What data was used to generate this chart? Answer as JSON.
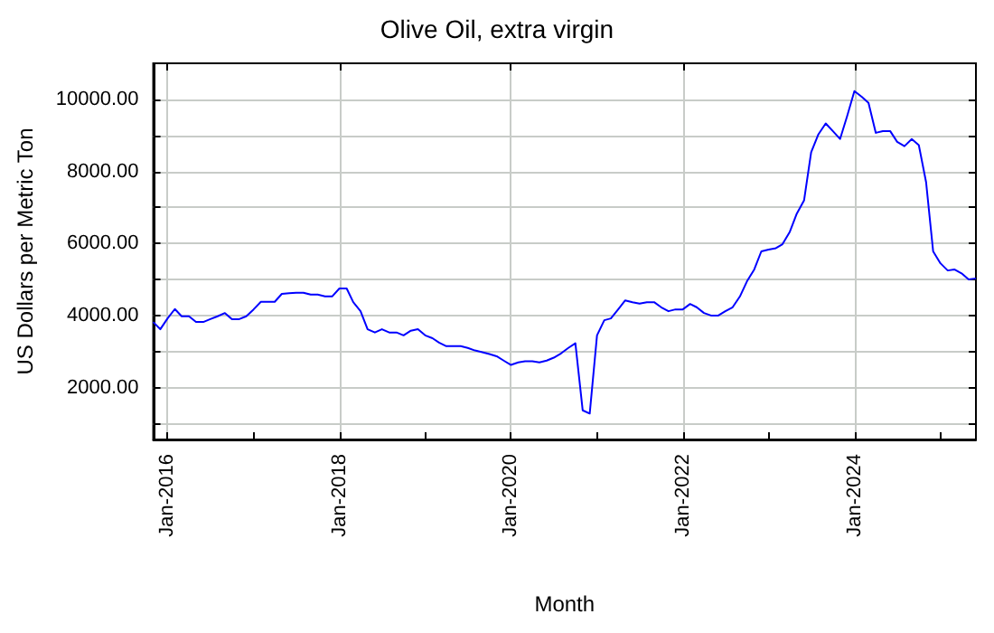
{
  "chart_data": {
    "type": "line",
    "title": "Olive Oil, extra virgin",
    "xlabel": "Month",
    "ylabel": "US Dollars per Metric Ton",
    "x": [
      "2015-11",
      "2015-12",
      "2016-01",
      "2016-02",
      "2016-03",
      "2016-04",
      "2016-05",
      "2016-06",
      "2016-07",
      "2016-08",
      "2016-09",
      "2016-10",
      "2016-11",
      "2016-12",
      "2017-01",
      "2017-02",
      "2017-03",
      "2017-04",
      "2017-05",
      "2017-06",
      "2017-07",
      "2017-08",
      "2017-09",
      "2017-10",
      "2017-11",
      "2017-12",
      "2018-01",
      "2018-02",
      "2018-03",
      "2018-04",
      "2018-05",
      "2018-06",
      "2018-07",
      "2018-08",
      "2018-09",
      "2018-10",
      "2018-11",
      "2018-12",
      "2019-01",
      "2019-02",
      "2019-03",
      "2019-04",
      "2019-05",
      "2019-06",
      "2019-07",
      "2019-08",
      "2019-09",
      "2019-10",
      "2019-11",
      "2019-12",
      "2020-01",
      "2020-02",
      "2020-03",
      "2020-04",
      "2020-05",
      "2020-06",
      "2020-07",
      "2020-08",
      "2020-09",
      "2020-10",
      "2020-11",
      "2020-12",
      "2021-01",
      "2021-02",
      "2021-03",
      "2021-04",
      "2021-05",
      "2021-06",
      "2021-07",
      "2021-08",
      "2021-09",
      "2021-10",
      "2021-11",
      "2021-12",
      "2022-01",
      "2022-02",
      "2022-03",
      "2022-04",
      "2022-05",
      "2022-06",
      "2022-07",
      "2022-08",
      "2022-09",
      "2022-10",
      "2022-11",
      "2022-12",
      "2023-01",
      "2023-02",
      "2023-03",
      "2023-04",
      "2023-05",
      "2023-06",
      "2023-07",
      "2023-08",
      "2023-09",
      "2023-10",
      "2023-11",
      "2023-12",
      "2024-01",
      "2024-02",
      "2024-03",
      "2024-04",
      "2024-05",
      "2024-06",
      "2024-07",
      "2024-08",
      "2024-09",
      "2024-10",
      "2024-11",
      "2024-12",
      "2025-01",
      "2025-02",
      "2025-03",
      "2025-04",
      "2025-05",
      "2025-06"
    ],
    "series": [
      {
        "color": "#0000ff",
        "values": [
          3820,
          3620,
          3920,
          4180,
          3980,
          3980,
          3820,
          3820,
          3900,
          3980,
          4070,
          3900,
          3900,
          3980,
          4170,
          4380,
          4380,
          4380,
          4600,
          4620,
          4630,
          4630,
          4580,
          4580,
          4530,
          4530,
          4750,
          4750,
          4370,
          4120,
          3620,
          3530,
          3620,
          3530,
          3530,
          3450,
          3580,
          3620,
          3450,
          3370,
          3250,
          3150,
          3150,
          3150,
          3100,
          3030,
          2980,
          2930,
          2870,
          2750,
          2630,
          2700,
          2730,
          2730,
          2700,
          2750,
          2830,
          2950,
          3100,
          3230,
          1370,
          1280,
          3450,
          3870,
          3920,
          4170,
          4420,
          4370,
          4330,
          4370,
          4370,
          4230,
          4120,
          4170,
          4170,
          4320,
          4230,
          4070,
          4000,
          4000,
          4120,
          4230,
          4530,
          4950,
          5280,
          5780,
          5830,
          5870,
          5980,
          6320,
          6830,
          7200,
          8530,
          9030,
          9330,
          9120,
          8900,
          9530,
          10230,
          10070,
          9900,
          9070,
          9120,
          9120,
          8820,
          8700,
          8900,
          8730,
          7700,
          5780,
          5450,
          5250,
          5280,
          5170,
          5000,
          5030
        ]
      }
    ],
    "xlim": [
      "2015-11",
      "2025-06"
    ],
    "xticks": [
      {
        "value": "2016-01",
        "label": "Jan-2016"
      },
      {
        "value": "2017-01",
        "label": null
      },
      {
        "value": "2018-01",
        "label": "Jan-2018"
      },
      {
        "value": "2019-01",
        "label": null
      },
      {
        "value": "2020-01",
        "label": "Jan-2020"
      },
      {
        "value": "2021-01",
        "label": null
      },
      {
        "value": "2022-01",
        "label": "Jan-2022"
      },
      {
        "value": "2023-01",
        "label": null
      },
      {
        "value": "2024-01",
        "label": "Jan-2024"
      },
      {
        "value": "2025-01",
        "label": null
      }
    ],
    "ylim": [
      560,
      11000
    ],
    "yticks": [
      {
        "value": 1000,
        "label": null
      },
      {
        "value": 2000,
        "label": "2000.00"
      },
      {
        "value": 3000,
        "label": null
      },
      {
        "value": 4000,
        "label": "4000.00"
      },
      {
        "value": 5000,
        "label": null
      },
      {
        "value": 6000,
        "label": "6000.00"
      },
      {
        "value": 7000,
        "label": null
      },
      {
        "value": 8000,
        "label": "8000.00"
      },
      {
        "value": 9000,
        "label": null
      },
      {
        "value": 10000,
        "label": "10000.00"
      }
    ],
    "grid": true,
    "marker": "none",
    "line_style": "solid"
  }
}
